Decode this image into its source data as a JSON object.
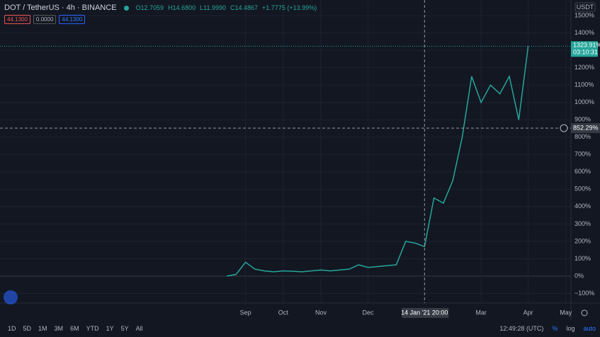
{
  "header": {
    "symbol": "DOT / TetherUS · 4h · BINANCE",
    "ohlc": [
      "O12.7059",
      "H14.6800",
      "L11.9990",
      "C14.4867",
      "+1.7775 (+13.99%)"
    ],
    "badges": [
      "44.1300",
      "0.0000",
      "44.1300"
    ]
  },
  "chart_data": {
    "type": "line",
    "categories": [
      null,
      null,
      "Sep",
      null,
      null,
      null,
      "Oct",
      null,
      null,
      null,
      "Nov",
      null,
      null,
      null,
      null,
      "Dec",
      null,
      null,
      null,
      null,
      null,
      null,
      null,
      null,
      null,
      null,
      null,
      "Mar",
      null,
      null,
      null,
      null,
      "Apr",
      null,
      null,
      null,
      "May"
    ],
    "values": [
      0,
      10,
      80,
      40,
      30,
      25,
      30,
      28,
      25,
      30,
      35,
      30,
      35,
      40,
      65,
      50,
      55,
      60,
      65,
      200,
      190,
      170,
      450,
      420,
      550,
      800,
      1150,
      1000,
      1100,
      1050,
      1150,
      900,
      1324,
      null,
      null,
      null,
      null
    ],
    "color": "#26a69a",
    "ylim": [
      -155,
      1590
    ],
    "yticks": [
      {
        "value": -100,
        "label": "−100%"
      },
      {
        "value": 0,
        "label": "0%"
      },
      {
        "value": 100,
        "label": "100%"
      },
      {
        "value": 200,
        "label": "200%"
      },
      {
        "value": 300,
        "label": "300%"
      },
      {
        "value": 400,
        "label": "400%"
      },
      {
        "value": 500,
        "label": "500%"
      },
      {
        "value": 600,
        "label": "600%"
      },
      {
        "value": 700,
        "label": "700%"
      },
      {
        "value": 800,
        "label": "800%"
      },
      {
        "value": 900,
        "label": "900%"
      },
      {
        "value": 1000,
        "label": "1000%"
      },
      {
        "value": 1100,
        "label": "1100%"
      },
      {
        "value": 1200,
        "label": "1200%"
      },
      {
        "value": 1300,
        "label": "1300%"
      },
      {
        "value": 1400,
        "label": "1400%"
      },
      {
        "value": 1500,
        "label": "1500%"
      }
    ],
    "grid": true,
    "currency": "USDT",
    "last": {
      "value": 1323.91,
      "label": "1323.91%"
    },
    "countdown": "03:10:31",
    "crosshair": {
      "value": 852.29,
      "label": "852.29%"
    },
    "crosshair_x_label": "14 Jan '21  20:00"
  },
  "toolbar": {
    "ranges": [
      "1D",
      "5D",
      "1M",
      "3M",
      "6M",
      "YTD",
      "1Y",
      "5Y",
      "All"
    ],
    "clock": "12:49:28 (UTC)",
    "modes": [
      "%",
      "log",
      "auto"
    ]
  }
}
